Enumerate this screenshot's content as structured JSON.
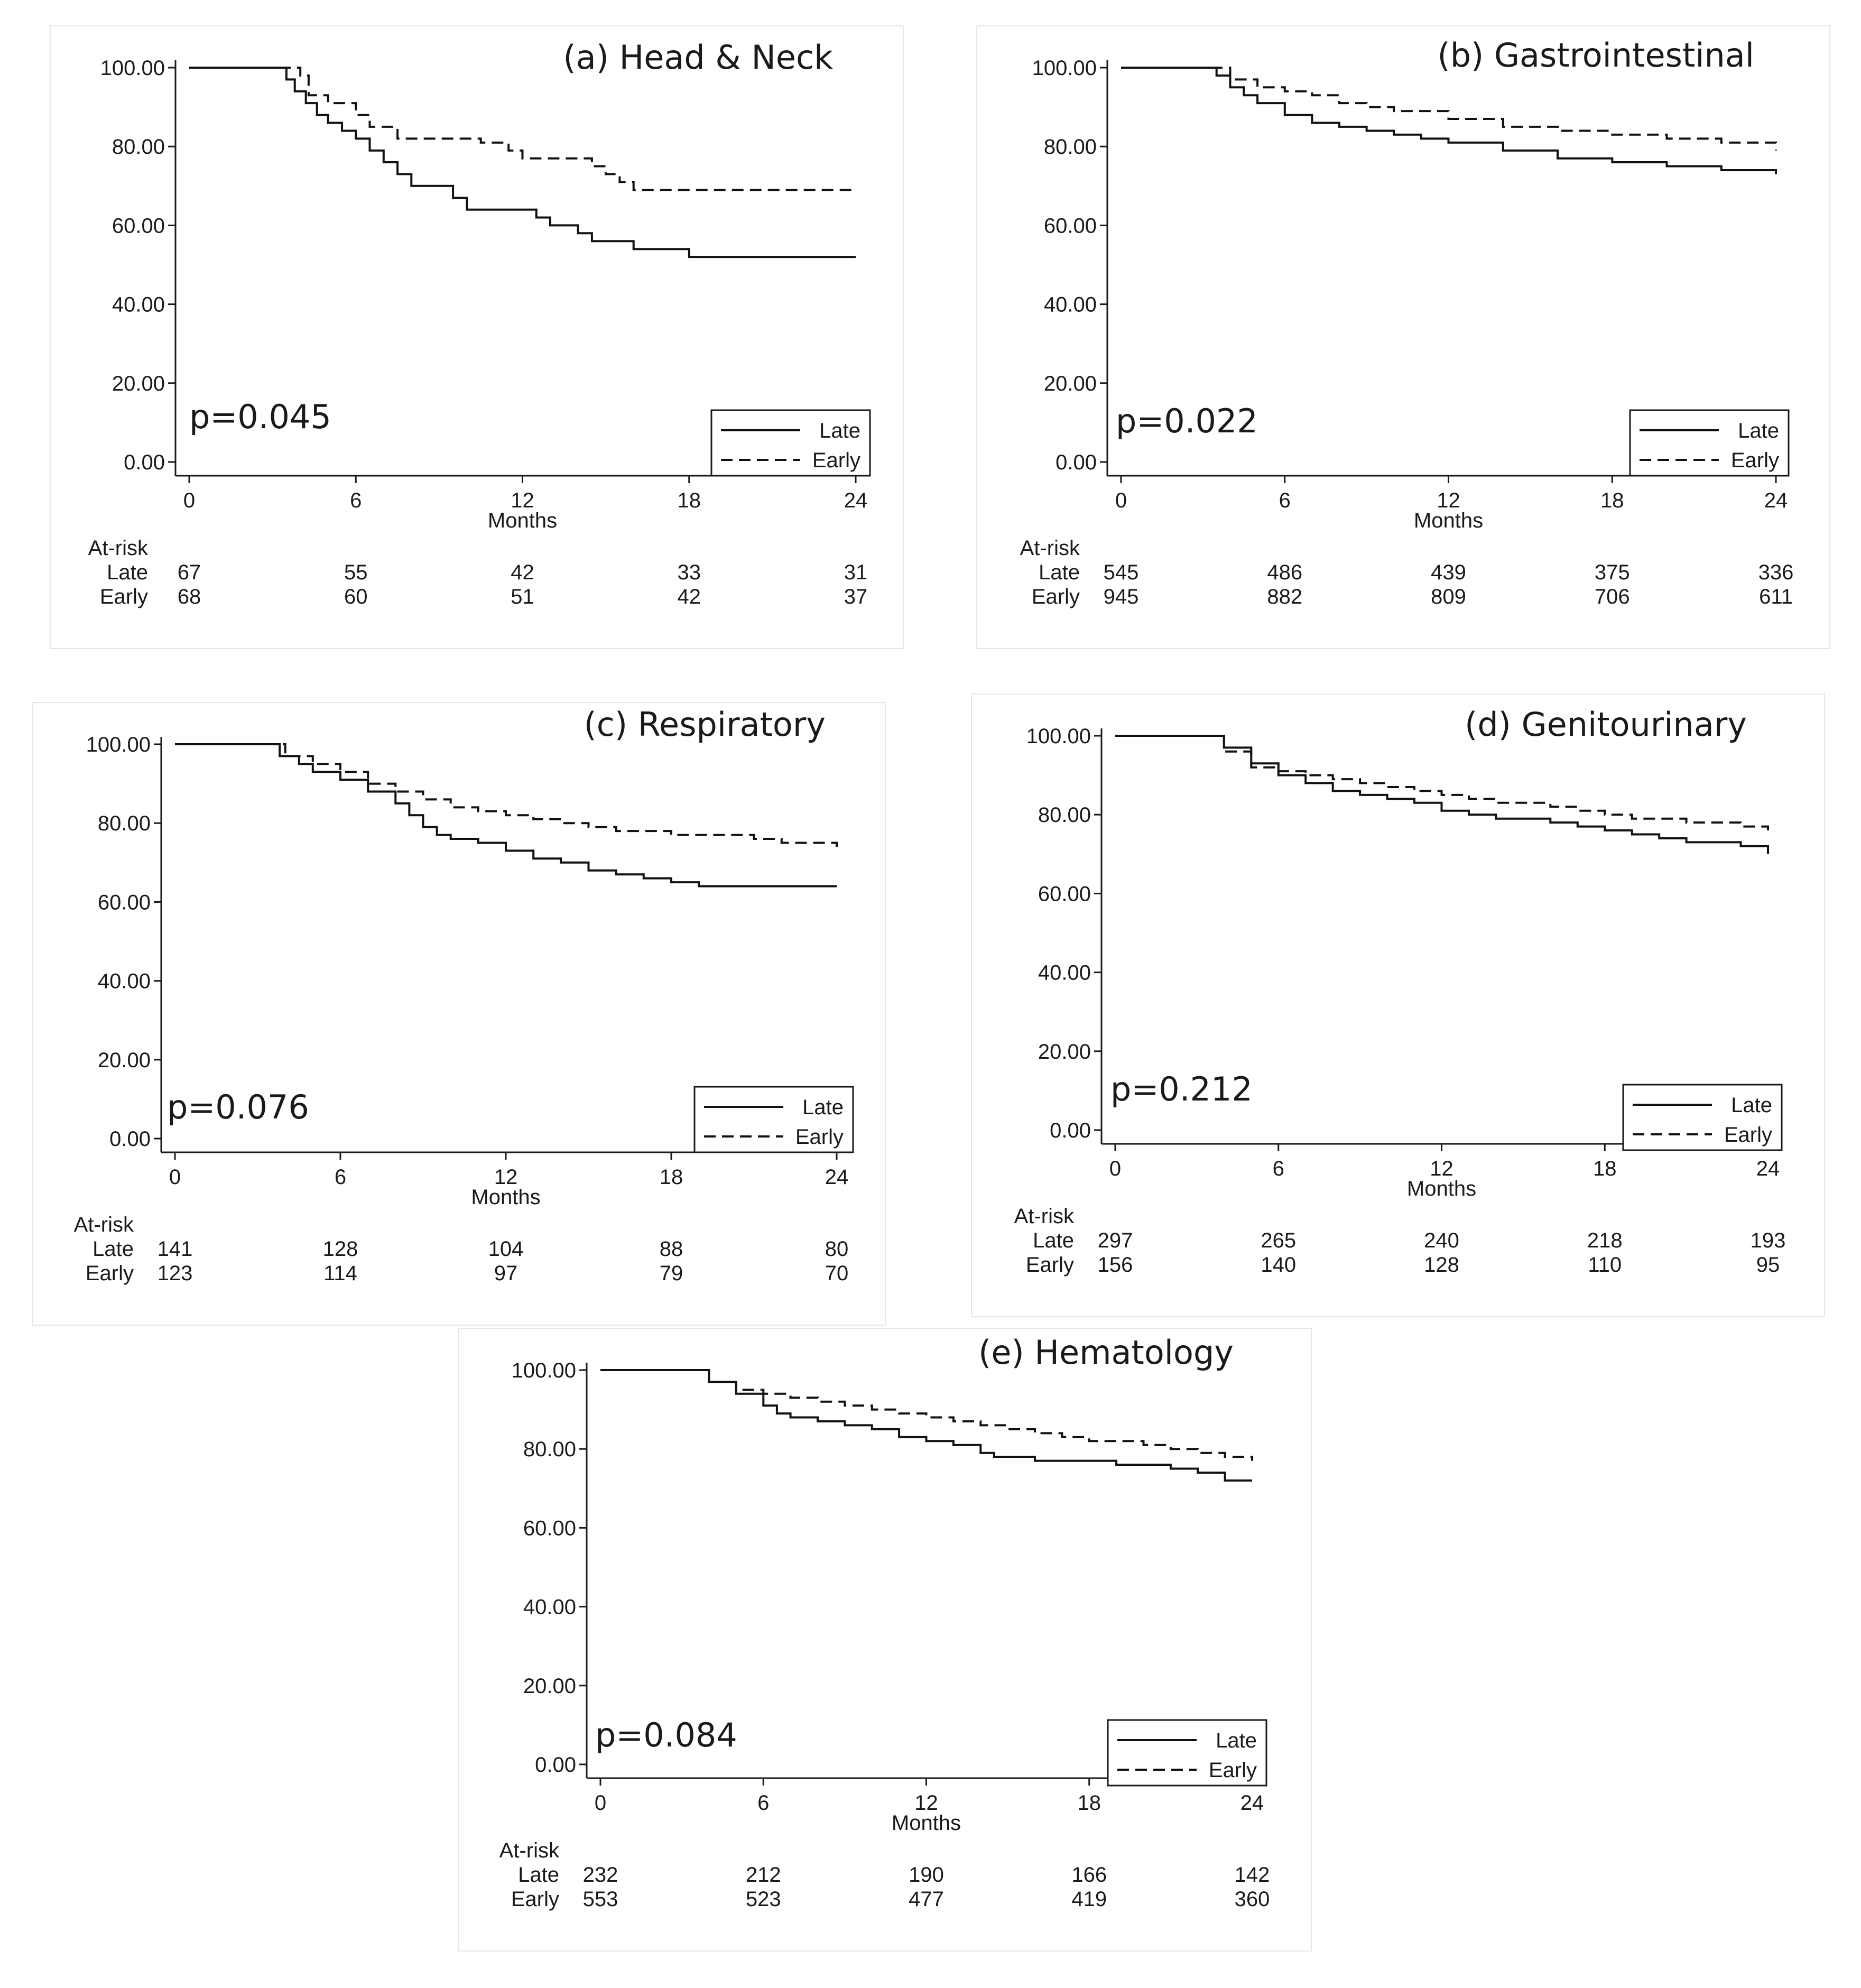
{
  "chart_data": [
    {
      "id": "a",
      "type": "line",
      "title": "(a) Head & Neck",
      "xlabel": "Months",
      "ylabel": "",
      "xlim": [
        0,
        24
      ],
      "ylim": [
        0,
        100
      ],
      "xticks": [
        "0",
        "6",
        "12",
        "18",
        "24"
      ],
      "yticks": [
        "0.00",
        "20.00",
        "40.00",
        "60.00",
        "80.00",
        "100.00"
      ],
      "p_value": "p=0.045",
      "legend": {
        "position": "bottom-right",
        "entries": [
          "Late",
          "Early"
        ]
      },
      "series": [
        {
          "name": "Late",
          "style": "solid",
          "x": [
            0,
            3.2,
            3.5,
            3.8,
            4.2,
            4.6,
            5.0,
            5.5,
            6.0,
            6.5,
            7.0,
            7.5,
            8.0,
            9.5,
            10.0,
            12.5,
            13.0,
            14.0,
            14.5,
            16.0,
            18.0,
            24.0
          ],
          "y": [
            100,
            100,
            97,
            94,
            91,
            88,
            86,
            84,
            82,
            79,
            76,
            73,
            70,
            67,
            64,
            62,
            60,
            58,
            56,
            54,
            52,
            52
          ]
        },
        {
          "name": "Early",
          "style": "dashed",
          "x": [
            0,
            3.5,
            4.0,
            4.3,
            5.0,
            6.0,
            6.5,
            7.5,
            9.5,
            10.5,
            11.5,
            12.0,
            14.5,
            15.0,
            15.5,
            16.0,
            24.0
          ],
          "y": [
            100,
            100,
            98,
            93,
            91,
            88,
            85,
            82,
            82,
            81,
            79,
            77,
            75,
            73,
            71,
            69,
            69
          ]
        }
      ],
      "at_risk": {
        "header": "At-risk",
        "rows": [
          {
            "label": "Late",
            "values": [
              "67",
              "55",
              "42",
              "33",
              "31"
            ]
          },
          {
            "label": "Early",
            "values": [
              "68",
              "60",
              "51",
              "42",
              "37"
            ]
          }
        ]
      }
    },
    {
      "id": "b",
      "type": "line",
      "title": "(b) Gastrointestinal",
      "xlabel": "Months",
      "ylabel": "",
      "xlim": [
        0,
        24
      ],
      "ylim": [
        0,
        100
      ],
      "xticks": [
        "0",
        "6",
        "12",
        "18",
        "24"
      ],
      "yticks": [
        "0.00",
        "20.00",
        "40.00",
        "60.00",
        "80.00",
        "100.00"
      ],
      "p_value": "p=0.022",
      "legend": {
        "position": "bottom-right",
        "entries": [
          "Late",
          "Early"
        ]
      },
      "series": [
        {
          "name": "Late",
          "style": "solid",
          "x": [
            0,
            3,
            3.5,
            4,
            4.5,
            5,
            6,
            7,
            8,
            9,
            10,
            11,
            12,
            14,
            16,
            18,
            20,
            22,
            24
          ],
          "y": [
            100,
            100,
            98,
            95,
            93,
            91,
            88,
            86,
            85,
            84,
            83,
            82,
            81,
            79,
            77,
            76,
            75,
            74,
            73
          ]
        },
        {
          "name": "Early",
          "style": "dashed",
          "x": [
            0,
            3,
            4,
            5,
            6,
            7,
            8,
            9,
            10,
            12,
            14,
            16,
            18,
            20,
            22,
            24
          ],
          "y": [
            100,
            100,
            97,
            95,
            94,
            93,
            91,
            90,
            89,
            87,
            85,
            84,
            83,
            82,
            81,
            79
          ]
        }
      ],
      "at_risk": {
        "header": "At-risk",
        "rows": [
          {
            "label": "Late",
            "values": [
              "545",
              "486",
              "439",
              "375",
              "336"
            ]
          },
          {
            "label": "Early",
            "values": [
              "945",
              "882",
              "809",
              "706",
              "611"
            ]
          }
        ]
      }
    },
    {
      "id": "c",
      "type": "line",
      "title": "(c) Respiratory",
      "xlabel": "Months",
      "ylabel": "",
      "xlim": [
        0,
        24
      ],
      "ylim": [
        0,
        100
      ],
      "xticks": [
        "0",
        "6",
        "12",
        "18",
        "24"
      ],
      "yticks": [
        "0.00",
        "20.00",
        "40.00",
        "60.00",
        "80.00",
        "100.00"
      ],
      "p_value": "p=0.076",
      "legend": {
        "position": "bottom-right",
        "entries": [
          "Late",
          "Early"
        ]
      },
      "series": [
        {
          "name": "Late",
          "style": "solid",
          "x": [
            0,
            3.2,
            3.8,
            4.5,
            5,
            6,
            7,
            8,
            8.5,
            9,
            9.5,
            10,
            11,
            12,
            13,
            14,
            15,
            16,
            17,
            18,
            19,
            24
          ],
          "y": [
            100,
            100,
            97,
            95,
            93,
            91,
            88,
            85,
            82,
            79,
            77,
            76,
            75,
            73,
            71,
            70,
            68,
            67,
            66,
            65,
            64,
            64
          ]
        },
        {
          "name": "Early",
          "style": "dashed",
          "x": [
            0,
            3.2,
            4,
            5,
            6,
            7,
            8,
            9,
            10,
            11,
            12,
            13,
            14,
            15,
            16,
            18,
            20,
            21,
            22,
            24
          ],
          "y": [
            100,
            100,
            97,
            95,
            93,
            90,
            88,
            86,
            84,
            83,
            82,
            81,
            80,
            79,
            78,
            77,
            77,
            76,
            75,
            74
          ]
        }
      ],
      "at_risk": {
        "header": "At-risk",
        "rows": [
          {
            "label": "Late",
            "values": [
              "141",
              "128",
              "104",
              "88",
              "80"
            ]
          },
          {
            "label": "Early",
            "values": [
              "123",
              "114",
              "97",
              "79",
              "70"
            ]
          }
        ]
      }
    },
    {
      "id": "d",
      "type": "line",
      "title": "(d) Genitourinary",
      "xlabel": "Months",
      "ylabel": "",
      "xlim": [
        0,
        24
      ],
      "ylim": [
        0,
        100
      ],
      "xticks": [
        "0",
        "6",
        "12",
        "18",
        "24"
      ],
      "yticks": [
        "0.00",
        "20.00",
        "40.00",
        "60.00",
        "80.00",
        "100.00"
      ],
      "p_value": "p=0.212",
      "legend": {
        "position": "bottom-right",
        "entries": [
          "Late",
          "Early"
        ]
      },
      "series": [
        {
          "name": "Late",
          "style": "solid",
          "x": [
            0,
            3.2,
            4,
            5,
            6,
            7,
            8,
            9,
            10,
            11,
            12,
            13,
            14,
            15,
            16,
            17,
            18,
            19,
            20,
            21,
            22,
            23,
            24
          ],
          "y": [
            100,
            100,
            97,
            93,
            90,
            88,
            86,
            85,
            84,
            83,
            81,
            80,
            79,
            79,
            78,
            77,
            76,
            75,
            74,
            73,
            73,
            72,
            70
          ]
        },
        {
          "name": "Early",
          "style": "dashed",
          "x": [
            0,
            3.2,
            4,
            5,
            6,
            7,
            8,
            9,
            10,
            11,
            12,
            13,
            14,
            15,
            16,
            17,
            18,
            19,
            20,
            21,
            22,
            23,
            24
          ],
          "y": [
            100,
            100,
            96,
            92,
            91,
            90,
            89,
            88,
            87,
            86,
            85,
            84,
            83,
            83,
            82,
            81,
            80,
            79,
            79,
            78,
            78,
            77,
            76
          ]
        }
      ],
      "at_risk": {
        "header": "At-risk",
        "rows": [
          {
            "label": "Late",
            "values": [
              "297",
              "265",
              "240",
              "218",
              "193"
            ]
          },
          {
            "label": "Early",
            "values": [
              "156",
              "140",
              "128",
              "110",
              "95"
            ]
          }
        ]
      }
    },
    {
      "id": "e",
      "type": "line",
      "title": "(e) Hematology",
      "xlabel": "Months",
      "ylabel": "",
      "xlim": [
        0,
        24
      ],
      "ylim": [
        0,
        100
      ],
      "xticks": [
        "0",
        "6",
        "12",
        "18",
        "24"
      ],
      "yticks": [
        "0.00",
        "20.00",
        "40.00",
        "60.00",
        "80.00",
        "100.00"
      ],
      "p_value": "p=0.084",
      "legend": {
        "position": "bottom-right",
        "entries": [
          "Late",
          "Early"
        ]
      },
      "series": [
        {
          "name": "Late",
          "style": "solid",
          "x": [
            0,
            3.2,
            4,
            5,
            6,
            6.5,
            7,
            8,
            9,
            10,
            11,
            12,
            13,
            14,
            14.5,
            15,
            16,
            17,
            18,
            19,
            20,
            21,
            22,
            23,
            24
          ],
          "y": [
            100,
            100,
            97,
            94,
            91,
            89,
            88,
            87,
            86,
            85,
            83,
            82,
            81,
            79,
            78,
            78,
            77,
            77,
            77,
            76,
            76,
            75,
            74,
            72,
            72
          ]
        },
        {
          "name": "Early",
          "style": "dashed",
          "x": [
            0,
            3,
            4,
            5,
            6,
            7,
            8,
            9,
            10,
            11,
            12,
            13,
            14,
            15,
            16,
            17,
            18,
            19,
            20,
            21,
            22,
            23,
            24
          ],
          "y": [
            100,
            100,
            97,
            95,
            94,
            93,
            92,
            91,
            90,
            89,
            88,
            87,
            86,
            85,
            84,
            83,
            82,
            82,
            81,
            80,
            79,
            78,
            77
          ]
        }
      ],
      "at_risk": {
        "header": "At-risk",
        "rows": [
          {
            "label": "Late",
            "values": [
              "232",
              "212",
              "190",
              "166",
              "142"
            ]
          },
          {
            "label": "Early",
            "values": [
              "553",
              "523",
              "477",
              "419",
              "360"
            ]
          }
        ]
      }
    }
  ]
}
